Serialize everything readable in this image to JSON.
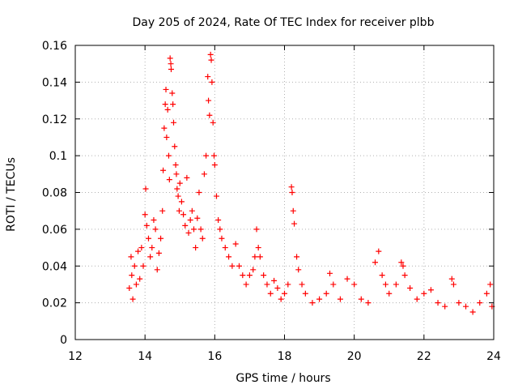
{
  "chart_data": {
    "type": "scatter",
    "title": "Day 205 of 2024, Rate Of TEC Index for receiver plbb",
    "xlabel": "GPS time / hours",
    "ylabel": "ROTI / TECUs",
    "xlim": [
      12,
      24
    ],
    "ylim": [
      0,
      0.16
    ],
    "xticks": [
      "12",
      "14",
      "16",
      "18",
      "20",
      "22",
      "24"
    ],
    "yticks": [
      "0",
      "0.02",
      "0.04",
      "0.06",
      "0.08",
      "0.1",
      "0.12",
      "0.14",
      "0.16"
    ],
    "grid": true,
    "marker": "+",
    "series_color": "#ff0000",
    "series": [
      {
        "name": "ROTI",
        "points": [
          [
            13.55,
            0.028
          ],
          [
            13.6,
            0.045
          ],
          [
            13.62,
            0.035
          ],
          [
            13.65,
            0.022
          ],
          [
            13.7,
            0.04
          ],
          [
            13.75,
            0.03
          ],
          [
            13.8,
            0.048
          ],
          [
            13.85,
            0.033
          ],
          [
            13.9,
            0.05
          ],
          [
            13.95,
            0.04
          ],
          [
            14.0,
            0.068
          ],
          [
            14.02,
            0.082
          ],
          [
            14.05,
            0.062
          ],
          [
            14.1,
            0.055
          ],
          [
            14.15,
            0.045
          ],
          [
            14.2,
            0.05
          ],
          [
            14.25,
            0.065
          ],
          [
            14.3,
            0.06
          ],
          [
            14.35,
            0.038
          ],
          [
            14.4,
            0.047
          ],
          [
            14.45,
            0.055
          ],
          [
            14.5,
            0.07
          ],
          [
            14.52,
            0.092
          ],
          [
            14.55,
            0.115
          ],
          [
            14.58,
            0.128
          ],
          [
            14.6,
            0.136
          ],
          [
            14.62,
            0.11
          ],
          [
            14.65,
            0.125
          ],
          [
            14.68,
            0.1
          ],
          [
            14.7,
            0.087
          ],
          [
            14.72,
            0.153
          ],
          [
            14.74,
            0.15
          ],
          [
            14.75,
            0.147
          ],
          [
            14.78,
            0.134
          ],
          [
            14.8,
            0.128
          ],
          [
            14.82,
            0.118
          ],
          [
            14.85,
            0.105
          ],
          [
            14.88,
            0.095
          ],
          [
            14.9,
            0.09
          ],
          [
            14.92,
            0.082
          ],
          [
            14.95,
            0.078
          ],
          [
            14.98,
            0.07
          ],
          [
            15.0,
            0.085
          ],
          [
            15.05,
            0.075
          ],
          [
            15.1,
            0.068
          ],
          [
            15.15,
            0.062
          ],
          [
            15.2,
            0.088
          ],
          [
            15.25,
            0.058
          ],
          [
            15.3,
            0.065
          ],
          [
            15.35,
            0.07
          ],
          [
            15.4,
            0.06
          ],
          [
            15.45,
            0.05
          ],
          [
            15.5,
            0.066
          ],
          [
            15.55,
            0.08
          ],
          [
            15.6,
            0.06
          ],
          [
            15.65,
            0.055
          ],
          [
            15.7,
            0.09
          ],
          [
            15.75,
            0.1
          ],
          [
            15.8,
            0.143
          ],
          [
            15.82,
            0.13
          ],
          [
            15.85,
            0.122
          ],
          [
            15.88,
            0.155
          ],
          [
            15.9,
            0.152
          ],
          [
            15.92,
            0.14
          ],
          [
            15.95,
            0.118
          ],
          [
            15.98,
            0.1
          ],
          [
            16.0,
            0.095
          ],
          [
            16.05,
            0.078
          ],
          [
            16.1,
            0.065
          ],
          [
            16.15,
            0.06
          ],
          [
            16.2,
            0.055
          ],
          [
            16.3,
            0.05
          ],
          [
            16.4,
            0.045
          ],
          [
            16.5,
            0.04
          ],
          [
            16.6,
            0.052
          ],
          [
            16.7,
            0.04
          ],
          [
            16.8,
            0.035
          ],
          [
            16.9,
            0.03
          ],
          [
            17.0,
            0.035
          ],
          [
            17.1,
            0.038
          ],
          [
            17.15,
            0.045
          ],
          [
            17.2,
            0.06
          ],
          [
            17.25,
            0.05
          ],
          [
            17.3,
            0.045
          ],
          [
            17.4,
            0.035
          ],
          [
            17.5,
            0.03
          ],
          [
            17.6,
            0.025
          ],
          [
            17.7,
            0.032
          ],
          [
            17.8,
            0.028
          ],
          [
            17.9,
            0.022
          ],
          [
            18.0,
            0.025
          ],
          [
            18.1,
            0.03
          ],
          [
            18.2,
            0.083
          ],
          [
            18.22,
            0.08
          ],
          [
            18.25,
            0.07
          ],
          [
            18.28,
            0.063
          ],
          [
            18.35,
            0.045
          ],
          [
            18.4,
            0.038
          ],
          [
            18.5,
            0.03
          ],
          [
            18.6,
            0.025
          ],
          [
            18.8,
            0.02
          ],
          [
            19.0,
            0.022
          ],
          [
            19.2,
            0.025
          ],
          [
            19.3,
            0.036
          ],
          [
            19.4,
            0.03
          ],
          [
            19.6,
            0.022
          ],
          [
            19.8,
            0.033
          ],
          [
            20.0,
            0.03
          ],
          [
            20.2,
            0.022
          ],
          [
            20.4,
            0.02
          ],
          [
            20.6,
            0.042
          ],
          [
            20.7,
            0.048
          ],
          [
            20.8,
            0.035
          ],
          [
            20.9,
            0.03
          ],
          [
            21.0,
            0.025
          ],
          [
            21.2,
            0.03
          ],
          [
            21.35,
            0.042
          ],
          [
            21.4,
            0.04
          ],
          [
            21.45,
            0.035
          ],
          [
            21.6,
            0.028
          ],
          [
            21.8,
            0.022
          ],
          [
            22.0,
            0.025
          ],
          [
            22.2,
            0.027
          ],
          [
            22.4,
            0.02
          ],
          [
            22.6,
            0.018
          ],
          [
            22.8,
            0.033
          ],
          [
            22.85,
            0.03
          ],
          [
            23.0,
            0.02
          ],
          [
            23.2,
            0.018
          ],
          [
            23.4,
            0.015
          ],
          [
            23.6,
            0.02
          ],
          [
            23.8,
            0.025
          ],
          [
            23.9,
            0.03
          ],
          [
            23.95,
            0.018
          ]
        ]
      }
    ]
  }
}
